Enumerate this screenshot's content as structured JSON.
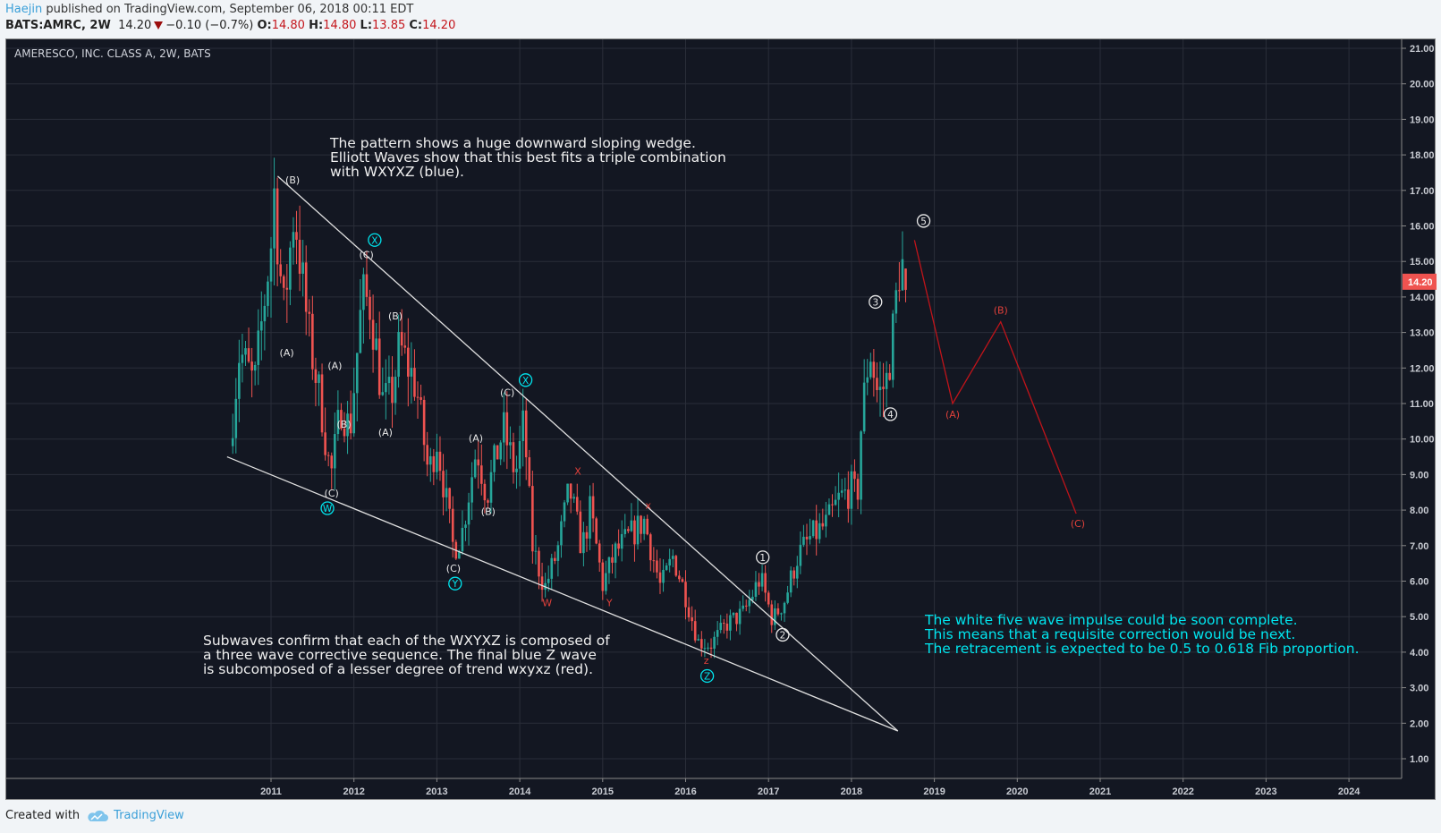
{
  "header": {
    "author": "Haejin",
    "published": "published on TradingView.com, September 06, 2018 00:11 EDT",
    "symbol": "BATS:AMRC, 2W",
    "last": "14.20",
    "change": "−0.10 (−0.7%)",
    "o_label": "O:",
    "o": "14.80",
    "h_label": "H:",
    "h": "14.80",
    "l_label": "L:",
    "l": "13.85",
    "c_label": "C:",
    "c": "14.20"
  },
  "footer": {
    "created_with": "Created with",
    "brand": "TradingView"
  },
  "notes": {
    "top": "The pattern shows a huge downward sloping wedge.\nElliott Waves show that this best fits a triple combination\nwith WXYXZ (blue).",
    "bottom": "Subwaves confirm that each of the WXYXZ is composed of\na three wave corrective sequence. The final blue Z wave\nis subcomposed of a lesser degree of trend wxyxz (red).",
    "right": "The white five wave impulse could be soon complete.\nThis means that a requisite correction would be next.\nThe retracement is expected to be 0.5 to 0.618 Fib proportion."
  },
  "colors": {
    "up": "#26a69a",
    "down": "#ef5350",
    "bg": "#131722",
    "grid": "#2a2e39",
    "cyan": "#00e5ee",
    "red_label": "#e0403a",
    "white": "#e8e8e8"
  },
  "chart_data": {
    "type": "candlestick",
    "title": "AMERESCO, INC. CLASS A, 2W, BATS",
    "interval": "2W",
    "ylim": [
      0.4,
      21.2
    ],
    "yticks": [
      "21.00",
      "20.00",
      "19.00",
      "18.00",
      "17.00",
      "16.00",
      "15.00",
      "14.00",
      "13.00",
      "12.00",
      "11.00",
      "10.00",
      "9.00",
      "8.00",
      "7.00",
      "6.00",
      "5.00",
      "4.00",
      "3.00",
      "2.00",
      "1.00"
    ],
    "xticks": [
      "2011",
      "2012",
      "2013",
      "2014",
      "2015",
      "2016",
      "2017",
      "2018",
      "2019",
      "2020",
      "2021",
      "2022",
      "2023",
      "2024"
    ],
    "last_price_label": "14.20",
    "price_path": [
      [
        2010.5,
        9.8
      ],
      [
        2010.62,
        12.5
      ],
      [
        2010.8,
        11.5
      ],
      [
        2011.0,
        15.5
      ],
      [
        2011.03,
        17.2
      ],
      [
        2011.15,
        13.5
      ],
      [
        2011.28,
        16.5
      ],
      [
        2011.45,
        13.0
      ],
      [
        2011.6,
        11.0
      ],
      [
        2011.72,
        8.9
      ],
      [
        2011.85,
        11.0
      ],
      [
        2011.95,
        10.2
      ],
      [
        2012.1,
        14.0
      ],
      [
        2012.2,
        13.8
      ],
      [
        2012.35,
        11.0
      ],
      [
        2012.45,
        11.2
      ],
      [
        2012.55,
        12.6
      ],
      [
        2012.75,
        11.5
      ],
      [
        2012.9,
        9.0
      ],
      [
        2013.0,
        10.0
      ],
      [
        2013.2,
        6.9
      ],
      [
        2013.3,
        7.3
      ],
      [
        2013.48,
        9.8
      ],
      [
        2013.6,
        8.4
      ],
      [
        2013.8,
        10.3
      ],
      [
        2013.95,
        9.0
      ],
      [
        2014.05,
        10.5
      ],
      [
        2014.15,
        7.0
      ],
      [
        2014.3,
        5.8
      ],
      [
        2014.45,
        6.8
      ],
      [
        2014.6,
        8.6
      ],
      [
        2014.75,
        6.9
      ],
      [
        2014.85,
        8.0
      ],
      [
        2015.0,
        5.9
      ],
      [
        2015.15,
        6.8
      ],
      [
        2015.3,
        7.2
      ],
      [
        2015.5,
        7.7
      ],
      [
        2015.7,
        5.8
      ],
      [
        2015.85,
        6.7
      ],
      [
        2016.0,
        5.6
      ],
      [
        2016.15,
        4.3
      ],
      [
        2016.3,
        4.2
      ],
      [
        2016.5,
        4.8
      ],
      [
        2016.7,
        5.1
      ],
      [
        2016.9,
        6.1
      ],
      [
        2017.05,
        4.9
      ],
      [
        2017.2,
        5.5
      ],
      [
        2017.35,
        6.7
      ],
      [
        2017.5,
        7.2
      ],
      [
        2017.7,
        7.6
      ],
      [
        2017.85,
        8.3
      ],
      [
        2018.0,
        8.6
      ],
      [
        2018.07,
        8.3
      ],
      [
        2018.12,
        10.5
      ],
      [
        2018.22,
        12.6
      ],
      [
        2018.32,
        11.2
      ],
      [
        2018.42,
        11.6
      ],
      [
        2018.5,
        13.0
      ],
      [
        2018.58,
        14.9
      ],
      [
        2018.64,
        14.8
      ],
      [
        2018.68,
        14.2
      ]
    ],
    "last_candle": {
      "o": 14.8,
      "h": 14.8,
      "l": 13.85,
      "c": 14.2
    },
    "trendlines": [
      {
        "name": "wedge-upper",
        "from": [
          2011.08,
          17.4
        ],
        "to": [
          2018.56,
          1.78
        ],
        "color": "#e0e0e0"
      },
      {
        "name": "wedge-lower",
        "from": [
          2010.47,
          9.5
        ],
        "to": [
          2018.56,
          1.78
        ],
        "color": "#e0e0e0"
      },
      {
        "name": "projection",
        "points": [
          [
            2018.76,
            15.6
          ],
          [
            2019.22,
            11.0
          ],
          [
            2019.8,
            13.3
          ],
          [
            2020.71,
            7.9
          ]
        ],
        "color": "#c0141a"
      }
    ],
    "labels": [
      {
        "text": "(B)",
        "at": [
          2011.26,
          17.3
        ],
        "color": "white"
      },
      {
        "text": "(A)",
        "at": [
          2011.19,
          12.43
        ],
        "color": "white"
      },
      {
        "text": "(C)",
        "at": [
          2012.15,
          15.2
        ],
        "color": "white"
      },
      {
        "text": "(B)",
        "at": [
          2012.5,
          13.47
        ],
        "color": "white"
      },
      {
        "text": "(A)",
        "at": [
          2011.77,
          12.07
        ],
        "color": "white"
      },
      {
        "text": "(B)",
        "at": [
          2011.88,
          10.42
        ],
        "color": "white"
      },
      {
        "text": "(C)",
        "at": [
          2011.73,
          8.48
        ],
        "color": "white"
      },
      {
        "text": "(A)",
        "at": [
          2012.38,
          10.2
        ],
        "color": "white"
      },
      {
        "text": "(A)",
        "at": [
          2013.47,
          10.03
        ],
        "color": "white"
      },
      {
        "text": "(B)",
        "at": [
          2013.62,
          7.96
        ],
        "color": "white"
      },
      {
        "text": "(C)",
        "at": [
          2013.2,
          6.36
        ],
        "color": "white"
      },
      {
        "text": "(C)",
        "at": [
          2013.85,
          11.32
        ],
        "color": "white"
      },
      {
        "text": "X",
        "at": [
          2014.7,
          9.1
        ],
        "color": "red"
      },
      {
        "text": "W",
        "at": [
          2014.33,
          5.4
        ],
        "color": "red"
      },
      {
        "text": "Y",
        "at": [
          2015.08,
          5.4
        ],
        "color": "red"
      },
      {
        "text": "x",
        "at": [
          2015.55,
          8.14
        ],
        "color": "red"
      },
      {
        "text": "z",
        "at": [
          2016.25,
          3.77
        ],
        "color": "red"
      },
      {
        "text": "(A)",
        "at": [
          2019.22,
          10.7
        ],
        "color": "red"
      },
      {
        "text": "(B)",
        "at": [
          2019.8,
          13.63
        ],
        "color": "red"
      },
      {
        "text": "(C)",
        "at": [
          2020.73,
          7.63
        ],
        "color": "red"
      }
    ],
    "circled_labels": [
      {
        "text": "1",
        "at": [
          2016.93,
          6.67
        ],
        "color": "white"
      },
      {
        "text": "2",
        "at": [
          2017.17,
          4.49
        ],
        "color": "white"
      },
      {
        "text": "3",
        "at": [
          2018.29,
          13.86
        ],
        "color": "white"
      },
      {
        "text": "4",
        "at": [
          2018.47,
          10.7
        ],
        "color": "white"
      },
      {
        "text": "5",
        "at": [
          2018.87,
          16.14
        ],
        "color": "white"
      },
      {
        "text": "W",
        "at": [
          2011.68,
          8.12
        ],
        "color": "cyan"
      },
      {
        "text": "X",
        "at": [
          2012.25,
          15.54
        ],
        "color": "cyan"
      },
      {
        "text": "X",
        "at": [
          2014.07,
          11.66
        ],
        "color": "cyan"
      },
      {
        "text": "Y",
        "at": [
          2013.22,
          6.02
        ],
        "color": "cyan"
      },
      {
        "text": "Z",
        "at": [
          2016.26,
          3.33
        ],
        "color": "cyan"
      }
    ]
  }
}
